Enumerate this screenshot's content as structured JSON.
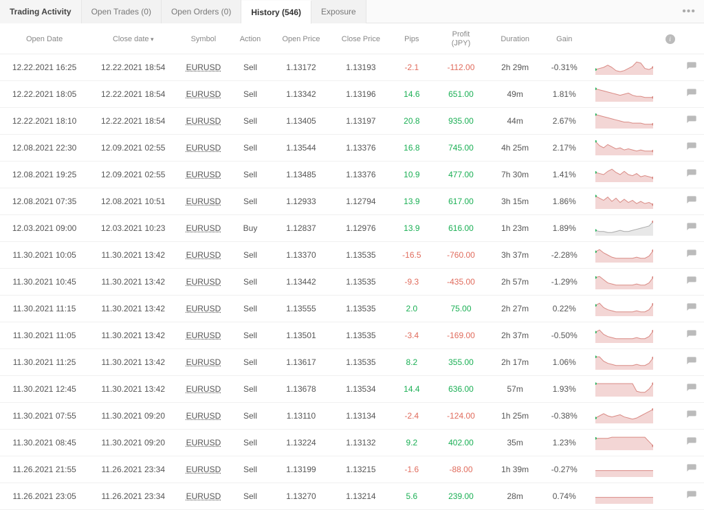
{
  "tabs": {
    "trading_activity": "Trading Activity",
    "open_trades": "Open Trades (0)",
    "open_orders": "Open Orders (0)",
    "history": "History (546)",
    "exposure": "Exposure"
  },
  "headers": {
    "open_date": "Open Date",
    "close_date": "Close date",
    "symbol": "Symbol",
    "action": "Action",
    "open_price": "Open Price",
    "close_price": "Close Price",
    "pips": "Pips",
    "profit_line1": "Profit",
    "profit_line2": "(JPY)",
    "duration": "Duration",
    "gain": "Gain"
  },
  "colors": {
    "positive": "#1aaf54",
    "negative": "#e06b5c",
    "spark_fill": "#f3d6d5",
    "spark_line": "#d98a84",
    "spark_fill_grey": "#e8e8e8",
    "spark_line_grey": "#aaaaaa"
  },
  "rows": [
    {
      "open": "12.22.2021 16:25",
      "close": "12.22.2021 18:54",
      "symbol": "EURUSD",
      "action": "Sell",
      "oprice": "1.13172",
      "cprice": "1.13193",
      "pips": "-2.1",
      "pips_cls": "neg",
      "profit": "-112.00",
      "profit_cls": "neg",
      "duration": "2h 29m",
      "gain": "-0.31%",
      "spark": {
        "pts": [
          5,
          6,
          7,
          9,
          7,
          4,
          3,
          4,
          6,
          8,
          12,
          11,
          6,
          5,
          7
        ],
        "grey": false
      }
    },
    {
      "open": "12.22.2021 18:05",
      "close": "12.22.2021 18:54",
      "symbol": "EURUSD",
      "action": "Sell",
      "oprice": "1.13342",
      "cprice": "1.13196",
      "pips": "14.6",
      "pips_cls": "pos",
      "profit": "651.00",
      "profit_cls": "pos",
      "duration": "49m",
      "gain": "1.81%",
      "spark": {
        "pts": [
          12,
          11,
          10,
          9,
          8,
          7,
          6,
          7,
          8,
          6,
          5,
          5,
          4,
          4,
          4
        ],
        "grey": false
      }
    },
    {
      "open": "12.22.2021 18:10",
      "close": "12.22.2021 18:54",
      "symbol": "EURUSD",
      "action": "Sell",
      "oprice": "1.13405",
      "cprice": "1.13197",
      "pips": "20.8",
      "pips_cls": "pos",
      "profit": "935.00",
      "profit_cls": "pos",
      "duration": "44m",
      "gain": "2.67%",
      "spark": {
        "pts": [
          13,
          12,
          11,
          10,
          9,
          8,
          7,
          6,
          6,
          5,
          5,
          5,
          4,
          4,
          4
        ],
        "grey": false
      }
    },
    {
      "open": "12.08.2021 22:30",
      "close": "12.09.2021 02:55",
      "symbol": "EURUSD",
      "action": "Sell",
      "oprice": "1.13544",
      "cprice": "1.13376",
      "pips": "16.8",
      "pips_cls": "pos",
      "profit": "745.00",
      "profit_cls": "pos",
      "duration": "4h 25m",
      "gain": "2.17%",
      "spark": {
        "pts": [
          13,
          9,
          7,
          10,
          8,
          6,
          7,
          5,
          6,
          5,
          4,
          5,
          4,
          4,
          4
        ],
        "grey": false
      }
    },
    {
      "open": "12.08.2021 19:25",
      "close": "12.09.2021 02:55",
      "symbol": "EURUSD",
      "action": "Sell",
      "oprice": "1.13485",
      "cprice": "1.13376",
      "pips": "10.9",
      "pips_cls": "pos",
      "profit": "477.00",
      "profit_cls": "pos",
      "duration": "7h 30m",
      "gain": "1.41%",
      "spark": {
        "pts": [
          9,
          8,
          7,
          10,
          12,
          9,
          7,
          10,
          7,
          6,
          8,
          5,
          6,
          5,
          4
        ],
        "grey": false
      }
    },
    {
      "open": "12.08.2021 07:35",
      "close": "12.08.2021 10:51",
      "symbol": "EURUSD",
      "action": "Sell",
      "oprice": "1.12933",
      "cprice": "1.12794",
      "pips": "13.9",
      "pips_cls": "pos",
      "profit": "617.00",
      "profit_cls": "pos",
      "duration": "3h 15m",
      "gain": "1.86%",
      "spark": {
        "pts": [
          12,
          10,
          8,
          11,
          7,
          10,
          6,
          9,
          6,
          8,
          5,
          7,
          5,
          6,
          4
        ],
        "grey": false
      }
    },
    {
      "open": "12.03.2021 09:00",
      "close": "12.03.2021 10:23",
      "symbol": "EURUSD",
      "action": "Buy",
      "oprice": "1.12837",
      "cprice": "1.12976",
      "pips": "13.9",
      "pips_cls": "pos",
      "profit": "616.00",
      "profit_cls": "pos",
      "duration": "1h 23m",
      "gain": "1.89%",
      "spark": {
        "pts": [
          5,
          4,
          4,
          3,
          3,
          4,
          5,
          4,
          4,
          5,
          6,
          7,
          8,
          9,
          13
        ],
        "grey": true
      }
    },
    {
      "open": "11.30.2021 10:05",
      "close": "11.30.2021 13:42",
      "symbol": "EURUSD",
      "action": "Sell",
      "oprice": "1.13370",
      "cprice": "1.13535",
      "pips": "-16.5",
      "pips_cls": "neg",
      "profit": "-760.00",
      "profit_cls": "neg",
      "duration": "3h 37m",
      "gain": "-2.28%",
      "spark": {
        "pts": [
          10,
          12,
          9,
          7,
          5,
          4,
          4,
          4,
          4,
          4,
          5,
          4,
          4,
          6,
          11
        ],
        "grey": false
      }
    },
    {
      "open": "11.30.2021 10:45",
      "close": "11.30.2021 13:42",
      "symbol": "EURUSD",
      "action": "Sell",
      "oprice": "1.13442",
      "cprice": "1.13535",
      "pips": "-9.3",
      "pips_cls": "neg",
      "profit": "-435.00",
      "profit_cls": "neg",
      "duration": "2h 57m",
      "gain": "-1.29%",
      "spark": {
        "pts": [
          11,
          12,
          9,
          6,
          5,
          4,
          4,
          4,
          4,
          4,
          5,
          4,
          4,
          6,
          11
        ],
        "grey": false
      }
    },
    {
      "open": "11.30.2021 11:15",
      "close": "11.30.2021 13:42",
      "symbol": "EURUSD",
      "action": "Sell",
      "oprice": "1.13555",
      "cprice": "1.13535",
      "pips": "2.0",
      "pips_cls": "pos",
      "profit": "75.00",
      "profit_cls": "pos",
      "duration": "2h 27m",
      "gain": "0.22%",
      "spark": {
        "pts": [
          10,
          12,
          8,
          6,
          5,
          4,
          4,
          4,
          4,
          4,
          5,
          4,
          4,
          6,
          11
        ],
        "grey": false
      }
    },
    {
      "open": "11.30.2021 11:05",
      "close": "11.30.2021 13:42",
      "symbol": "EURUSD",
      "action": "Sell",
      "oprice": "1.13501",
      "cprice": "1.13535",
      "pips": "-3.4",
      "pips_cls": "neg",
      "profit": "-169.00",
      "profit_cls": "neg",
      "duration": "2h 37m",
      "gain": "-0.50%",
      "spark": {
        "pts": [
          10,
          12,
          8,
          6,
          5,
          4,
          4,
          4,
          4,
          4,
          5,
          4,
          4,
          6,
          11
        ],
        "grey": false
      }
    },
    {
      "open": "11.30.2021 11:25",
      "close": "11.30.2021 13:42",
      "symbol": "EURUSD",
      "action": "Sell",
      "oprice": "1.13617",
      "cprice": "1.13535",
      "pips": "8.2",
      "pips_cls": "pos",
      "profit": "355.00",
      "profit_cls": "pos",
      "duration": "2h 17m",
      "gain": "1.06%",
      "spark": {
        "pts": [
          12,
          12,
          8,
          6,
          5,
          4,
          4,
          4,
          4,
          4,
          5,
          4,
          4,
          6,
          11
        ],
        "grey": false
      }
    },
    {
      "open": "11.30.2021 12:45",
      "close": "11.30.2021 13:42",
      "symbol": "EURUSD",
      "action": "Sell",
      "oprice": "1.13678",
      "cprice": "1.13534",
      "pips": "14.4",
      "pips_cls": "pos",
      "profit": "636.00",
      "profit_cls": "pos",
      "duration": "57m",
      "gain": "1.93%",
      "spark": {
        "pts": [
          12,
          12,
          12,
          12,
          12,
          12,
          12,
          12,
          12,
          12,
          5,
          4,
          4,
          7,
          12
        ],
        "grey": false
      }
    },
    {
      "open": "11.30.2021 07:55",
      "close": "11.30.2021 09:20",
      "symbol": "EURUSD",
      "action": "Sell",
      "oprice": "1.13110",
      "cprice": "1.13134",
      "pips": "-2.4",
      "pips_cls": "neg",
      "profit": "-124.00",
      "profit_cls": "neg",
      "duration": "1h 25m",
      "gain": "-0.38%",
      "spark": {
        "pts": [
          5,
          7,
          9,
          7,
          6,
          7,
          8,
          6,
          5,
          4,
          5,
          7,
          9,
          11,
          13
        ],
        "grey": false
      }
    },
    {
      "open": "11.30.2021 08:45",
      "close": "11.30.2021 09:20",
      "symbol": "EURUSD",
      "action": "Sell",
      "oprice": "1.13224",
      "cprice": "1.13132",
      "pips": "9.2",
      "pips_cls": "pos",
      "profit": "402.00",
      "profit_cls": "pos",
      "duration": "35m",
      "gain": "1.23%",
      "spark": {
        "pts": [
          11,
          11,
          11,
          11,
          12,
          12,
          12,
          12,
          12,
          12,
          12,
          12,
          12,
          8,
          4
        ],
        "grey": false
      }
    },
    {
      "open": "11.26.2021 21:55",
      "close": "11.26.2021 23:34",
      "symbol": "EURUSD",
      "action": "Sell",
      "oprice": "1.13199",
      "cprice": "1.13215",
      "pips": "-1.6",
      "pips_cls": "neg",
      "profit": "-88.00",
      "profit_cls": "neg",
      "duration": "1h 39m",
      "gain": "-0.27%",
      "spark": {
        "pts": [
          6,
          6,
          6,
          6,
          6,
          6,
          6,
          6,
          6,
          6,
          6,
          6,
          6,
          6,
          6
        ],
        "grey": false,
        "flat": true
      }
    },
    {
      "open": "11.26.2021 23:05",
      "close": "11.26.2021 23:34",
      "symbol": "EURUSD",
      "action": "Sell",
      "oprice": "1.13270",
      "cprice": "1.13214",
      "pips": "5.6",
      "pips_cls": "pos",
      "profit": "239.00",
      "profit_cls": "pos",
      "duration": "28m",
      "gain": "0.74%",
      "spark": {
        "pts": [
          6,
          6,
          6,
          6,
          6,
          6,
          6,
          6,
          6,
          6,
          6,
          6,
          6,
          6,
          6
        ],
        "grey": false,
        "flat": true
      }
    }
  ]
}
